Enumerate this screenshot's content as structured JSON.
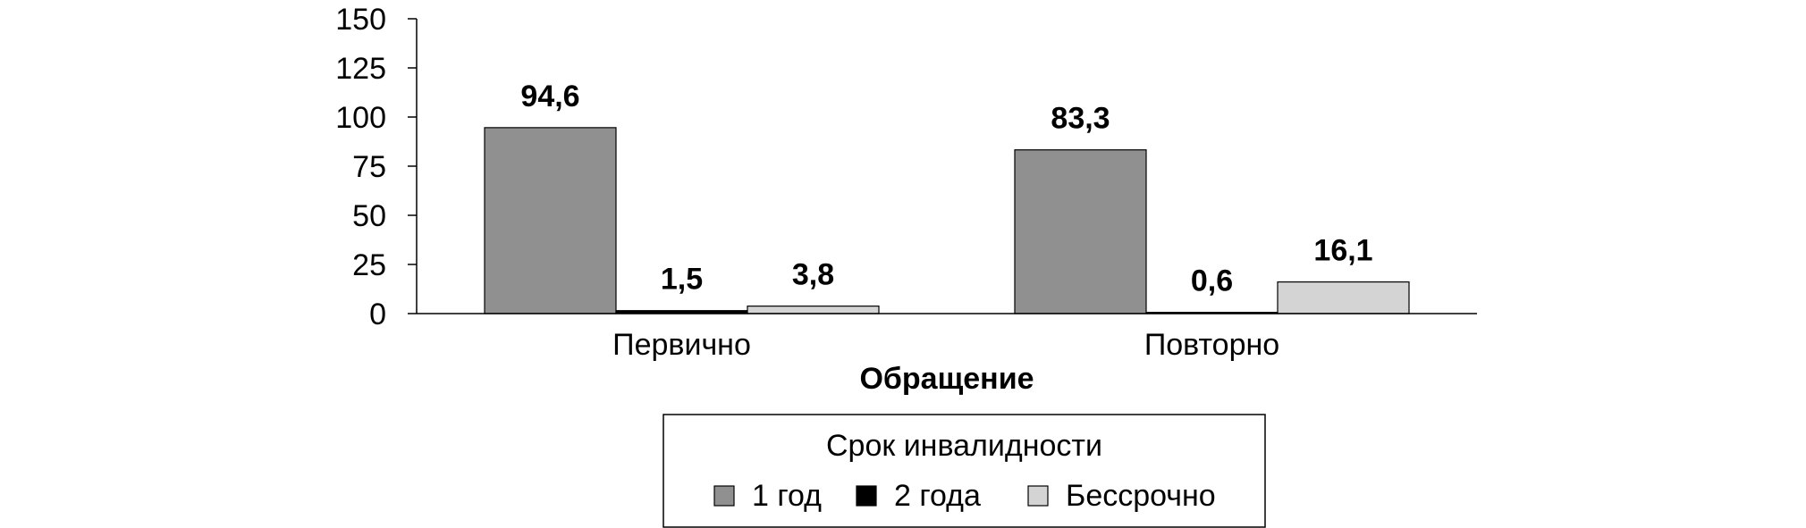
{
  "chart_data": {
    "type": "bar",
    "categories": [
      "Первично",
      "Повторно"
    ],
    "series": [
      {
        "name": "1 год",
        "values": [
          94.6,
          83.3
        ],
        "labels": [
          "94,6",
          "83,3"
        ],
        "color": "#909090"
      },
      {
        "name": "2 года",
        "values": [
          1.5,
          0.6
        ],
        "labels": [
          "1,5",
          "0,6"
        ],
        "color": "#000000"
      },
      {
        "name": "Бессрочно",
        "values": [
          3.8,
          16.1
        ],
        "labels": [
          "3,8",
          "16,1"
        ],
        "color": "#d4d4d4"
      }
    ],
    "title": "",
    "xlabel": "Обращение",
    "ylabel": "",
    "ylim": [
      0,
      150
    ],
    "yticks": [
      0,
      25,
      50,
      75,
      100,
      125,
      150
    ],
    "grid": false,
    "legend": {
      "title": "Срок инвалидности",
      "placement": "bottom-center"
    }
  }
}
